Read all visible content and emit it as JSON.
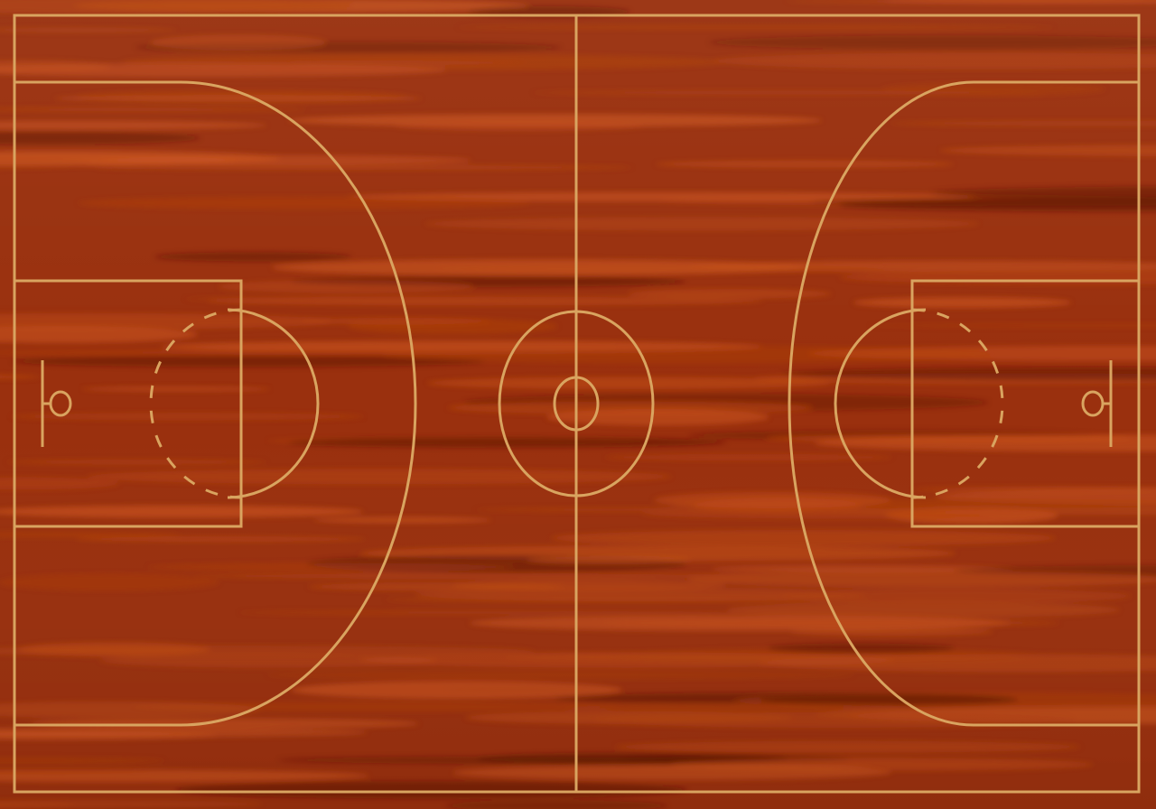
{
  "court": {
    "floor_colors": {
      "base": "#9a300e",
      "light_grain": "#c8521c",
      "mid_grain": "#b3420f",
      "dark_grain": "#5e1705"
    },
    "line_color": "#d9a460"
  }
}
